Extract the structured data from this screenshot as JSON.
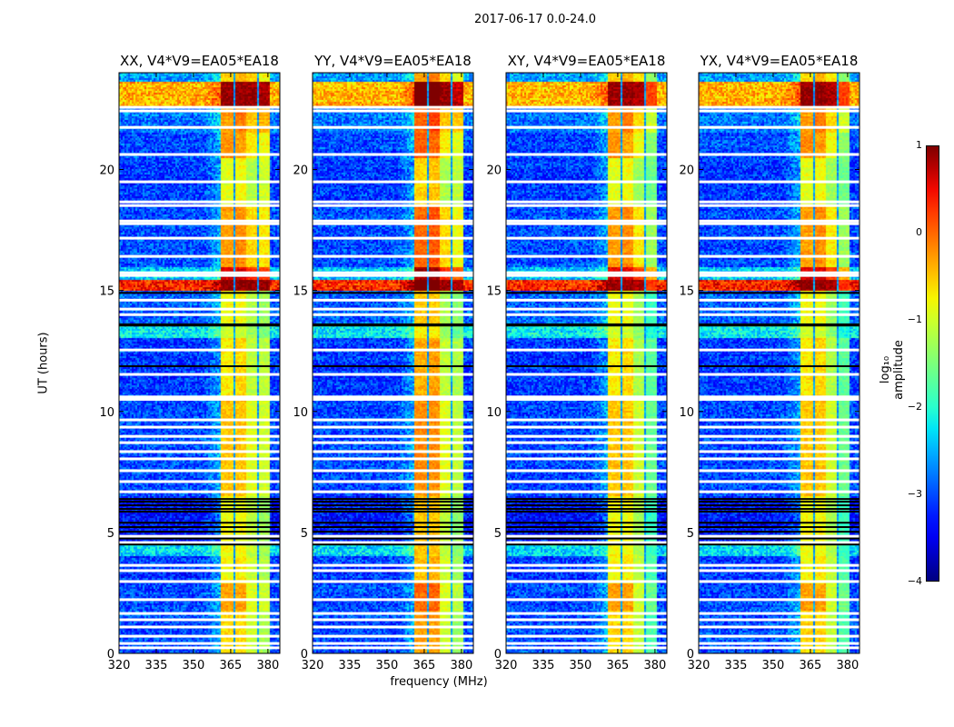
{
  "suptitle": "2017-06-17 0.0-24.0",
  "xlabel": "frequency (MHz)",
  "ylabel": "UT (hours)",
  "colorbar": {
    "label": "log₁₀ amplitude",
    "ticks": [
      "1",
      "0",
      "−1",
      "−2",
      "−3",
      "−4"
    ],
    "range": [
      -4,
      1
    ],
    "colormap": "jet"
  },
  "chart_data": {
    "type": "heatmap",
    "title": "2017-06-17 0.0-24.0",
    "xlabel": "frequency (MHz)",
    "ylabel": "UT (hours)",
    "xlim": [
      320,
      384.8
    ],
    "ylim": [
      0,
      24
    ],
    "xticks": [
      320,
      335,
      350,
      365,
      380
    ],
    "yticks": [
      0,
      5,
      10,
      15,
      20
    ],
    "panels": [
      {
        "title": "XX, V4*V9=EA05*EA18",
        "band_offsets": [
          0,
          0,
          0,
          0
        ]
      },
      {
        "title": "YY, V4*V9=EA05*EA18",
        "band_offsets": [
          0.3,
          0.3,
          0,
          -0.1
        ]
      },
      {
        "title": "XY, V4*V9=EA05*EA18",
        "band_offsets": [
          0,
          0,
          -0.1,
          -0.6
        ]
      },
      {
        "title": "YX, V4*V9=EA05*EA18",
        "band_offsets": [
          0,
          0,
          -0.1,
          -0.6
        ]
      }
    ],
    "bands_mhz": [
      [
        361,
        366
      ],
      [
        366,
        371
      ],
      [
        371,
        376
      ],
      [
        376,
        381
      ]
    ],
    "time_segments": [
      {
        "ut": [
          23.6,
          24
        ],
        "background": -2.6,
        "bands": [
          -0.6,
          -0.4,
          -0.6,
          -0.8
        ]
      },
      {
        "ut": [
          22.6,
          23.6
        ],
        "background": -0.4,
        "bands": [
          0.9,
          0.9,
          0.9,
          0.8
        ]
      },
      {
        "ut": [
          21.5,
          22.6
        ],
        "background": -2.8,
        "bands": [
          -0.3,
          -0.1,
          -0.5,
          -0.4
        ]
      },
      {
        "ut": [
          20.5,
          21.5
        ],
        "background": -3.0,
        "bands": [
          -0.2,
          -0.3,
          -0.7,
          -0.8
        ]
      },
      {
        "ut": [
          18.5,
          20.5
        ],
        "background": -3.1,
        "bands": [
          -0.9,
          -0.8,
          -1.2,
          -1.0
        ]
      },
      {
        "ut": [
          16.0,
          18.5
        ],
        "background": -3.0,
        "bands": [
          -0.3,
          -0.2,
          -0.6,
          -0.7
        ]
      },
      {
        "ut": [
          15.4,
          16.0
        ],
        "background": -2.4,
        "bands": [
          0.6,
          0.6,
          0.3,
          0.2
        ]
      },
      {
        "ut": [
          15.0,
          15.4
        ],
        "background": 0.3,
        "bands": [
          0.9,
          0.9,
          0.9,
          0.9
        ]
      },
      {
        "ut": [
          13.6,
          15.0
        ],
        "background": -2.9,
        "bands": [
          -0.8,
          -0.8,
          -1.2,
          -1.3
        ]
      },
      {
        "ut": [
          13.0,
          13.6
        ],
        "background": -2.2,
        "bands": [
          -1.0,
          -1.0,
          -1.3,
          -1.5
        ]
      },
      {
        "ut": [
          10.6,
          13.0
        ],
        "background": -3.1,
        "bands": [
          -0.7,
          -0.6,
          -1.1,
          -1.1
        ]
      },
      {
        "ut": [
          6.5,
          10.6
        ],
        "background": -3.0,
        "bands": [
          -0.5,
          -0.5,
          -0.9,
          -1.0
        ]
      },
      {
        "ut": [
          4.6,
          6.5
        ],
        "background": -3.3,
        "bands": [
          -0.8,
          -0.8,
          -1.1,
          -1.3
        ]
      },
      {
        "ut": [
          4.0,
          4.6
        ],
        "background": -2.3,
        "bands": [
          -0.8,
          -0.8,
          -1.1,
          -1.3
        ]
      },
      {
        "ut": [
          2.9,
          4.0
        ],
        "background": -3.1,
        "bands": [
          -0.8,
          -0.7,
          -1.0,
          -1.2
        ]
      },
      {
        "ut": [
          1.8,
          2.9
        ],
        "background": -3.0,
        "bands": [
          -0.3,
          -0.3,
          -0.9,
          -1.0
        ]
      },
      {
        "ut": [
          0,
          1.8
        ],
        "background": -3.0,
        "bands": [
          -0.6,
          -0.6,
          -1.0,
          -1.2
        ]
      }
    ],
    "flagged_ut": [
      22.57,
      22.42,
      21.74,
      20.62,
      19.49,
      18.66,
      18.51,
      17.87,
      17.76,
      17.16,
      16.41,
      15.73,
      15.62,
      14.6,
      14.23,
      14.0,
      12.54,
      11.53,
      10.6,
      10.5,
      9.65,
      9.35,
      8.97,
      8.71,
      8.34,
      8.04,
      7.55,
      7.1,
      6.68,
      4.84,
      4.58,
      3.64,
      3.42,
      2.97,
      2.22,
      1.65,
      1.39,
      1.09,
      0.71,
      0.41,
      0.23
    ],
    "dropout_ut": [
      14.9,
      13.6,
      13.55,
      11.87,
      6.38,
      6.27,
      6.12,
      5.97,
      5.86,
      5.4,
      5.22,
      5.03,
      4.75,
      4.5
    ]
  },
  "colors": {
    "flagged": "#ffffff",
    "dropout": "#000000"
  }
}
